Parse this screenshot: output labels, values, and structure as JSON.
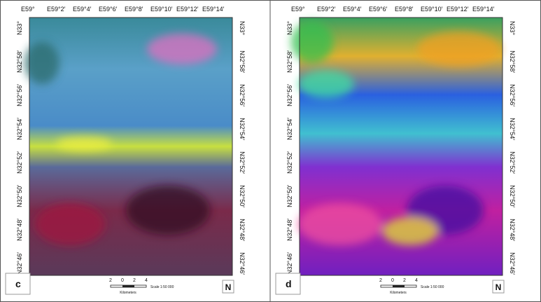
{
  "panels": [
    {
      "label": "c",
      "top_labels": [
        "E59°",
        "E59°2′",
        "E59°4′",
        "E59°6′",
        "E59°8′",
        "E59°10′",
        "E59°12′",
        "E59°14′"
      ],
      "side_labels": [
        "N33°",
        "N32°58′",
        "N32°56′",
        "N32°54′",
        "N32°52′",
        "N32°50′",
        "N32°48′",
        "N32°46′"
      ],
      "scale_ticks": [
        "2",
        "0",
        "2",
        "4"
      ],
      "scale_unit": "Kilometers",
      "scale_ratio": "Scale 1:50 000",
      "north": "N"
    },
    {
      "label": "d",
      "top_labels": [
        "E59°",
        "E59°2′",
        "E59°4′",
        "E59°6′",
        "E59°8′",
        "E59°10′",
        "E59°12′",
        "E59°14′"
      ],
      "side_labels": [
        "N33°",
        "N32°58′",
        "N32°56′",
        "N32°54′",
        "N32°52′",
        "N32°50′",
        "N32°48′",
        "N32°46′"
      ],
      "scale_ticks": [
        "2",
        "0",
        "2",
        "4"
      ],
      "scale_unit": "Kilometers",
      "scale_ratio": "Scale 1:50 000",
      "north": "N"
    }
  ]
}
